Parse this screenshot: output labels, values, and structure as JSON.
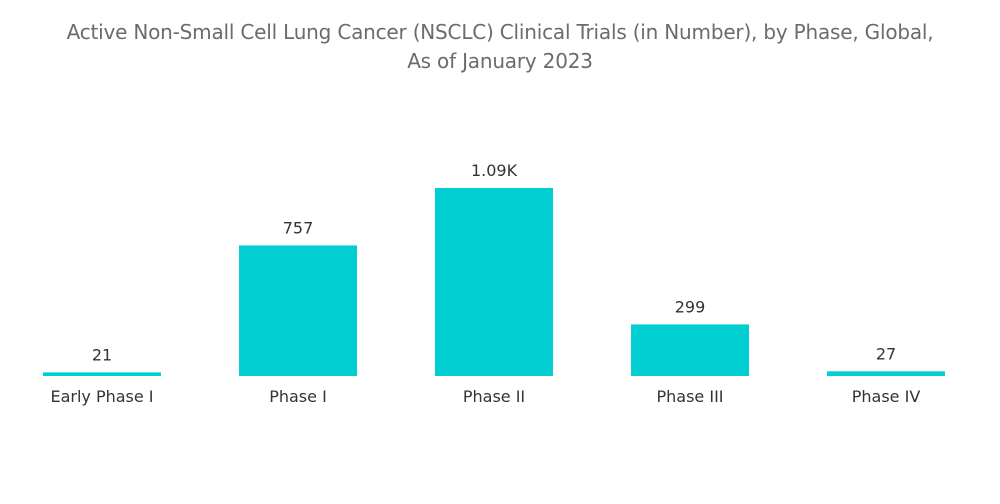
{
  "chart_data": {
    "type": "bar",
    "title_line1": "Active Non-Small Cell Lung Cancer (NSCLC) Clinical Trials (in Number), by Phase, Global,",
    "title_line2": "As of January 2023",
    "categories": [
      "Early Phase I",
      "Phase I",
      "Phase II",
      "Phase III",
      "Phase IV"
    ],
    "values": [
      21,
      757,
      1090,
      299,
      27
    ],
    "data_labels": [
      "21",
      "757",
      "1.09K",
      "299",
      "27"
    ],
    "xlabel": "",
    "ylabel": "",
    "grid": false,
    "legend": "none",
    "bar_color": "#00ced1"
  }
}
